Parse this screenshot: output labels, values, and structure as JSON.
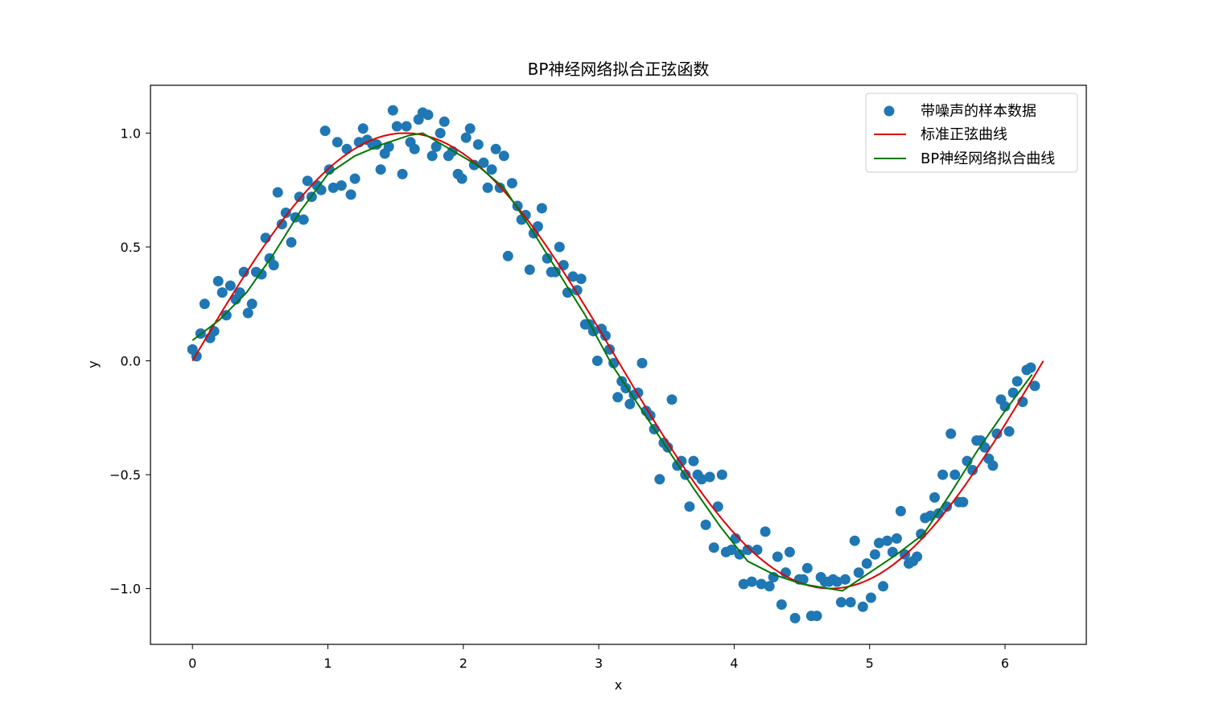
{
  "chart_data": {
    "type": "scatter",
    "title": "BP神经网络拟合正弦函数",
    "xlabel": "x",
    "ylabel": "y",
    "xlim": [
      -0.31,
      6.6
    ],
    "ylim": [
      -1.245,
      1.21
    ],
    "x_ticks": [
      0,
      1,
      2,
      3,
      4,
      5,
      6
    ],
    "y_ticks": [
      1.0,
      0.5,
      0.0,
      -0.5,
      -1.0
    ],
    "x_tick_labels": [
      "0",
      "1",
      "2",
      "3",
      "4",
      "5",
      "6"
    ],
    "y_tick_labels": [
      "1.0",
      "0.5",
      "0.0",
      "−0.5",
      "−1.0"
    ],
    "grid": false,
    "legend_position": "top-right",
    "colors": {
      "scatter": "#1f77b4",
      "sine": "#e00000",
      "fit": "#007700"
    },
    "series": [
      {
        "name": "带噪声的样本数据",
        "kind": "scatter",
        "points": [
          [
            0.0,
            0.05
          ],
          [
            0.03,
            0.02
          ],
          [
            0.06,
            0.12
          ],
          [
            0.09,
            0.25
          ],
          [
            0.13,
            0.1
          ],
          [
            0.16,
            0.13
          ],
          [
            0.19,
            0.35
          ],
          [
            0.22,
            0.3
          ],
          [
            0.25,
            0.2
          ],
          [
            0.28,
            0.33
          ],
          [
            0.32,
            0.27
          ],
          [
            0.35,
            0.3
          ],
          [
            0.38,
            0.39
          ],
          [
            0.41,
            0.21
          ],
          [
            0.44,
            0.25
          ],
          [
            0.47,
            0.39
          ],
          [
            0.51,
            0.38
          ],
          [
            0.54,
            0.54
          ],
          [
            0.57,
            0.45
          ],
          [
            0.6,
            0.42
          ],
          [
            0.63,
            0.74
          ],
          [
            0.66,
            0.6
          ],
          [
            0.69,
            0.65
          ],
          [
            0.73,
            0.52
          ],
          [
            0.76,
            0.63
          ],
          [
            0.79,
            0.72
          ],
          [
            0.82,
            0.62
          ],
          [
            0.85,
            0.79
          ],
          [
            0.88,
            0.72
          ],
          [
            0.92,
            0.77
          ],
          [
            0.95,
            0.75
          ],
          [
            0.98,
            1.01
          ],
          [
            1.01,
            0.84
          ],
          [
            1.04,
            0.76
          ],
          [
            1.07,
            0.96
          ],
          [
            1.1,
            0.77
          ],
          [
            1.14,
            0.93
          ],
          [
            1.17,
            0.73
          ],
          [
            1.2,
            0.8
          ],
          [
            1.23,
            0.96
          ],
          [
            1.26,
            1.02
          ],
          [
            1.29,
            0.97
          ],
          [
            1.33,
            0.95
          ],
          [
            1.36,
            0.95
          ],
          [
            1.39,
            0.84
          ],
          [
            1.42,
            0.91
          ],
          [
            1.45,
            0.94
          ],
          [
            1.48,
            1.1
          ],
          [
            1.51,
            1.03
          ],
          [
            1.55,
            0.82
          ],
          [
            1.58,
            1.03
          ],
          [
            1.61,
            0.96
          ],
          [
            1.64,
            0.93
          ],
          [
            1.67,
            1.06
          ],
          [
            1.7,
            1.09
          ],
          [
            1.74,
            1.08
          ],
          [
            1.77,
            0.9
          ],
          [
            1.8,
            0.94
          ],
          [
            1.83,
            1.0
          ],
          [
            1.86,
            1.05
          ],
          [
            1.89,
            0.9
          ],
          [
            1.92,
            0.92
          ],
          [
            1.96,
            0.82
          ],
          [
            1.99,
            0.8
          ],
          [
            2.02,
            0.98
          ],
          [
            2.05,
            1.02
          ],
          [
            2.08,
            0.86
          ],
          [
            2.11,
            0.95
          ],
          [
            2.15,
            0.87
          ],
          [
            2.18,
            0.76
          ],
          [
            2.21,
            0.84
          ],
          [
            2.24,
            0.93
          ],
          [
            2.27,
            0.76
          ],
          [
            2.3,
            0.9
          ],
          [
            2.33,
            0.46
          ],
          [
            2.36,
            0.78
          ],
          [
            2.4,
            0.68
          ],
          [
            2.43,
            0.62
          ],
          [
            2.46,
            0.64
          ],
          [
            2.49,
            0.4
          ],
          [
            2.52,
            0.56
          ],
          [
            2.55,
            0.59
          ],
          [
            2.58,
            0.67
          ],
          [
            2.62,
            0.45
          ],
          [
            2.65,
            0.39
          ],
          [
            2.68,
            0.39
          ],
          [
            2.71,
            0.5
          ],
          [
            2.74,
            0.42
          ],
          [
            2.77,
            0.3
          ],
          [
            2.81,
            0.37
          ],
          [
            2.84,
            0.31
          ],
          [
            2.87,
            0.36
          ],
          [
            2.9,
            0.16
          ],
          [
            2.93,
            0.16
          ],
          [
            2.96,
            0.13
          ],
          [
            2.99,
            -0.0
          ],
          [
            3.02,
            0.14
          ],
          [
            3.05,
            0.11
          ],
          [
            3.08,
            0.05
          ],
          [
            3.11,
            -0.01
          ],
          [
            3.14,
            -0.16
          ],
          [
            3.17,
            -0.09
          ],
          [
            3.2,
            -0.12
          ],
          [
            3.23,
            -0.19
          ],
          [
            3.26,
            -0.15
          ],
          [
            3.29,
            -0.14
          ],
          [
            3.32,
            -0.01
          ],
          [
            3.35,
            -0.22
          ],
          [
            3.38,
            -0.24
          ],
          [
            3.41,
            -0.3
          ],
          [
            3.45,
            -0.52
          ],
          [
            3.48,
            -0.36
          ],
          [
            3.51,
            -0.38
          ],
          [
            3.54,
            -0.17
          ],
          [
            3.58,
            -0.46
          ],
          [
            3.61,
            -0.44
          ],
          [
            3.64,
            -0.5
          ],
          [
            3.67,
            -0.64
          ],
          [
            3.7,
            -0.44
          ],
          [
            3.73,
            -0.5
          ],
          [
            3.76,
            -0.52
          ],
          [
            3.79,
            -0.72
          ],
          [
            3.82,
            -0.51
          ],
          [
            3.85,
            -0.82
          ],
          [
            3.88,
            -0.64
          ],
          [
            3.91,
            -0.5
          ],
          [
            3.94,
            -0.84
          ],
          [
            3.98,
            -0.83
          ],
          [
            4.01,
            -0.78
          ],
          [
            4.04,
            -0.85
          ],
          [
            4.07,
            -0.98
          ],
          [
            4.1,
            -0.83
          ],
          [
            4.13,
            -0.97
          ],
          [
            4.17,
            -0.83
          ],
          [
            4.2,
            -0.98
          ],
          [
            4.23,
            -0.75
          ],
          [
            4.26,
            -0.99
          ],
          [
            4.29,
            -0.95
          ],
          [
            4.32,
            -0.86
          ],
          [
            4.35,
            -1.07
          ],
          [
            4.38,
            -0.93
          ],
          [
            4.41,
            -0.84
          ],
          [
            4.45,
            -1.13
          ],
          [
            4.48,
            -0.96
          ],
          [
            4.51,
            -0.96
          ],
          [
            4.54,
            -0.91
          ],
          [
            4.57,
            -1.12
          ],
          [
            4.61,
            -1.12
          ],
          [
            4.64,
            -0.95
          ],
          [
            4.67,
            -0.97
          ],
          [
            4.7,
            -0.97
          ],
          [
            4.73,
            -0.96
          ],
          [
            4.76,
            -0.97
          ],
          [
            4.79,
            -1.06
          ],
          [
            4.82,
            -0.96
          ],
          [
            4.86,
            -1.06
          ],
          [
            4.89,
            -0.79
          ],
          [
            4.92,
            -0.93
          ],
          [
            4.95,
            -1.08
          ],
          [
            4.98,
            -0.89
          ],
          [
            5.01,
            -1.04
          ],
          [
            5.04,
            -0.85
          ],
          [
            5.07,
            -0.8
          ],
          [
            5.1,
            -0.99
          ],
          [
            5.13,
            -0.79
          ],
          [
            5.17,
            -0.84
          ],
          [
            5.2,
            -0.78
          ],
          [
            5.23,
            -0.66
          ],
          [
            5.26,
            -0.85
          ],
          [
            5.29,
            -0.89
          ],
          [
            5.32,
            -0.88
          ],
          [
            5.35,
            -0.86
          ],
          [
            5.38,
            -0.76
          ],
          [
            5.41,
            -0.69
          ],
          [
            5.45,
            -0.68
          ],
          [
            5.48,
            -0.6
          ],
          [
            5.51,
            -0.67
          ],
          [
            5.54,
            -0.5
          ],
          [
            5.57,
            -0.64
          ],
          [
            5.6,
            -0.32
          ],
          [
            5.63,
            -0.5
          ],
          [
            5.66,
            -0.62
          ],
          [
            5.69,
            -0.62
          ],
          [
            5.72,
            -0.44
          ],
          [
            5.76,
            -0.48
          ],
          [
            5.79,
            -0.35
          ],
          [
            5.82,
            -0.35
          ],
          [
            5.85,
            -0.38
          ],
          [
            5.88,
            -0.43
          ],
          [
            5.91,
            -0.46
          ],
          [
            5.94,
            -0.32
          ],
          [
            5.97,
            -0.17
          ],
          [
            6.0,
            -0.2
          ],
          [
            6.03,
            -0.31
          ],
          [
            6.06,
            -0.14
          ],
          [
            6.09,
            -0.09
          ],
          [
            6.13,
            -0.18
          ],
          [
            6.16,
            -0.04
          ],
          [
            6.19,
            -0.03
          ],
          [
            6.22,
            -0.11
          ]
        ]
      },
      {
        "name": "标准正弦曲线",
        "kind": "line",
        "function": "sin",
        "x_range": [
          0,
          6.283
        ]
      },
      {
        "name": "BP神经网络拟合曲线",
        "kind": "line",
        "points": [
          [
            0.0,
            0.09
          ],
          [
            0.2,
            0.18
          ],
          [
            0.4,
            0.3
          ],
          [
            0.6,
            0.47
          ],
          [
            0.8,
            0.66
          ],
          [
            1.0,
            0.82
          ],
          [
            1.2,
            0.9
          ],
          [
            1.4,
            0.95
          ],
          [
            1.6,
            0.99
          ],
          [
            1.7,
            1.0
          ],
          [
            1.9,
            0.93
          ],
          [
            2.1,
            0.86
          ],
          [
            2.3,
            0.76
          ],
          [
            2.5,
            0.58
          ],
          [
            2.7,
            0.39
          ],
          [
            2.9,
            0.2
          ],
          [
            3.1,
            -0.02
          ],
          [
            3.3,
            -0.2
          ],
          [
            3.5,
            -0.38
          ],
          [
            3.7,
            -0.56
          ],
          [
            3.9,
            -0.73
          ],
          [
            4.1,
            -0.88
          ],
          [
            4.3,
            -0.94
          ],
          [
            4.5,
            -0.98
          ],
          [
            4.7,
            -1.0
          ],
          [
            4.8,
            -1.01
          ],
          [
            5.0,
            -0.93
          ],
          [
            5.2,
            -0.85
          ],
          [
            5.4,
            -0.76
          ],
          [
            5.6,
            -0.58
          ],
          [
            5.8,
            -0.39
          ],
          [
            6.0,
            -0.22
          ],
          [
            6.2,
            -0.06
          ]
        ]
      }
    ]
  }
}
